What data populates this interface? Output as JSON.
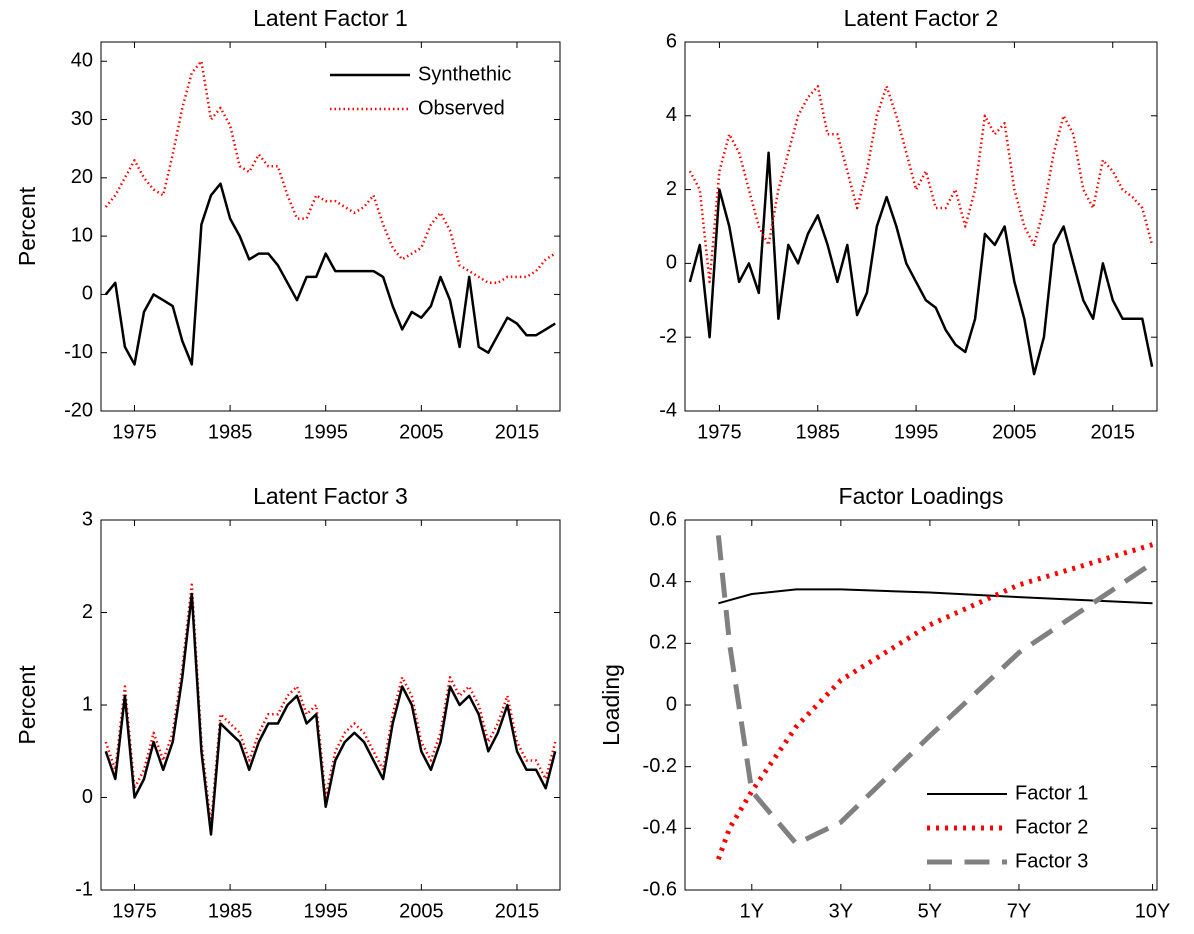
{
  "chart_data": [
    {
      "type": "line",
      "title": "Latent Factor 1",
      "y_label": "Percent",
      "x": [
        1972,
        1973,
        1974,
        1975,
        1976,
        1977,
        1978,
        1979,
        1980,
        1981,
        1982,
        1983,
        1984,
        1985,
        1986,
        1987,
        1988,
        1989,
        1990,
        1991,
        1992,
        1993,
        1994,
        1995,
        1996,
        1997,
        1998,
        1999,
        2000,
        2001,
        2002,
        2003,
        2004,
        2005,
        2006,
        2007,
        2008,
        2009,
        2010,
        2011,
        2012,
        2013,
        2014,
        2015,
        2016,
        2017,
        2018,
        2019
      ],
      "xlim": [
        1971.5,
        2019.5
      ],
      "xticks": [
        1975,
        1985,
        1995,
        2005,
        2015
      ],
      "ylim": [
        -20,
        43.3
      ],
      "yticks": [
        -20,
        -10,
        0,
        10,
        20,
        30,
        40
      ],
      "legend": "upper right",
      "series": [
        {
          "name": "Synthethic",
          "color": "#000000",
          "linestyle": "solid",
          "linewidth": 2.5,
          "values": [
            0,
            2,
            -9,
            -12,
            -3,
            0,
            -1,
            -2,
            -8,
            -12,
            12,
            17,
            19,
            13,
            10,
            6,
            7,
            7,
            5,
            2,
            -1,
            3,
            3,
            7,
            4,
            4,
            4,
            4,
            4,
            3,
            -2,
            -6,
            -3,
            -4,
            -2,
            3,
            -1,
            -9,
            3,
            -9,
            -10,
            -7,
            -4,
            -5,
            -7,
            -7,
            -6,
            -5
          ]
        },
        {
          "name": "Observed",
          "color": "#ff0000",
          "linestyle": "dotted",
          "linewidth": 2.5,
          "values": [
            15,
            17,
            20,
            23,
            20,
            18,
            17,
            24,
            32,
            38,
            40,
            30,
            32,
            29,
            22,
            21,
            24,
            22,
            22,
            17,
            13,
            13,
            17,
            16,
            16,
            15,
            14,
            15,
            17,
            12,
            8,
            6,
            7,
            8,
            12,
            14,
            11,
            5,
            4,
            3,
            2,
            2,
            3,
            3,
            3,
            4,
            6,
            7
          ]
        }
      ]
    },
    {
      "type": "line",
      "title": "Latent Factor 2",
      "x": [
        1972,
        1973,
        1974,
        1975,
        1976,
        1977,
        1978,
        1979,
        1980,
        1981,
        1982,
        1983,
        1984,
        1985,
        1986,
        1987,
        1988,
        1989,
        1990,
        1991,
        1992,
        1993,
        1994,
        1995,
        1996,
        1997,
        1998,
        1999,
        2000,
        2001,
        2002,
        2003,
        2004,
        2005,
        2006,
        2007,
        2008,
        2009,
        2010,
        2011,
        2012,
        2013,
        2014,
        2015,
        2016,
        2017,
        2018,
        2019
      ],
      "xlim": [
        1971.5,
        2019.5
      ],
      "xticks": [
        1975,
        1985,
        1995,
        2005,
        2015
      ],
      "ylim": [
        -4,
        6
      ],
      "yticks": [
        -4,
        -2,
        0,
        2,
        4,
        6
      ],
      "series": [
        {
          "color": "#000000",
          "linestyle": "solid",
          "linewidth": 2.5,
          "values": [
            -0.5,
            0.5,
            -2,
            2,
            1,
            -0.5,
            0,
            -0.8,
            3,
            -1.5,
            0.5,
            0,
            0.8,
            1.3,
            0.5,
            -0.5,
            0.5,
            -1.4,
            -0.8,
            1,
            1.8,
            1,
            0,
            -0.5,
            -1,
            -1.2,
            -1.8,
            -2.2,
            -2.4,
            -1.5,
            0.8,
            0.5,
            1,
            -0.5,
            -1.5,
            -3,
            -2,
            0.5,
            1,
            0,
            -1,
            -1.5,
            0,
            -1,
            -1.5,
            -1.5,
            -1.5,
            -2.8
          ]
        },
        {
          "color": "#ff0000",
          "linestyle": "dotted",
          "linewidth": 2.5,
          "values": [
            2.5,
            2,
            -0.5,
            2.5,
            3.5,
            3,
            2,
            1,
            0.5,
            2,
            3,
            4,
            4.5,
            4.8,
            3.5,
            3.5,
            2.5,
            1.5,
            2.5,
            4,
            4.8,
            4,
            3,
            2,
            2.5,
            1.5,
            1.5,
            2,
            1,
            2,
            4,
            3.5,
            3.8,
            2,
            1,
            0.5,
            1.5,
            3,
            4,
            3.5,
            2,
            1.5,
            2.8,
            2.5,
            2,
            1.8,
            1.5,
            0.5
          ]
        }
      ]
    },
    {
      "type": "line",
      "title": "Latent Factor 3",
      "y_label": "Percent",
      "x": [
        1972,
        1973,
        1974,
        1975,
        1976,
        1977,
        1978,
        1979,
        1980,
        1981,
        1982,
        1983,
        1984,
        1985,
        1986,
        1987,
        1988,
        1989,
        1990,
        1991,
        1992,
        1993,
        1994,
        1995,
        1996,
        1997,
        1998,
        1999,
        2000,
        2001,
        2002,
        2003,
        2004,
        2005,
        2006,
        2007,
        2008,
        2009,
        2010,
        2011,
        2012,
        2013,
        2014,
        2015,
        2016,
        2017,
        2018,
        2019
      ],
      "xlim": [
        1971.5,
        2019.5
      ],
      "xticks": [
        1975,
        1985,
        1995,
        2005,
        2015
      ],
      "ylim": [
        -1,
        3
      ],
      "yticks": [
        -1,
        0,
        1,
        2,
        3
      ],
      "series": [
        {
          "color": "#ff0000",
          "linestyle": "dotted",
          "linewidth": 2.5,
          "values": [
            0.6,
            0.3,
            1.2,
            0.1,
            0.3,
            0.7,
            0.4,
            0.7,
            1.4,
            2.3,
            0.6,
            -0.3,
            0.9,
            0.8,
            0.7,
            0.4,
            0.7,
            0.9,
            0.9,
            1.1,
            1.2,
            0.9,
            1,
            0,
            0.5,
            0.7,
            0.8,
            0.7,
            0.5,
            0.3,
            0.9,
            1.3,
            1.1,
            0.6,
            0.4,
            0.7,
            1.3,
            1.1,
            1.2,
            1,
            0.6,
            0.8,
            1.1,
            0.6,
            0.4,
            0.4,
            0.2,
            0.6
          ]
        },
        {
          "color": "#000000",
          "linestyle": "solid",
          "linewidth": 2.5,
          "values": [
            0.5,
            0.2,
            1.1,
            0,
            0.2,
            0.6,
            0.3,
            0.6,
            1.3,
            2.2,
            0.5,
            -0.4,
            0.8,
            0.7,
            0.6,
            0.3,
            0.6,
            0.8,
            0.8,
            1,
            1.1,
            0.8,
            0.9,
            -0.1,
            0.4,
            0.6,
            0.7,
            0.6,
            0.4,
            0.2,
            0.8,
            1.2,
            1,
            0.5,
            0.3,
            0.6,
            1.2,
            1,
            1.1,
            0.9,
            0.5,
            0.7,
            1,
            0.5,
            0.3,
            0.3,
            0.1,
            0.5
          ]
        }
      ]
    },
    {
      "type": "line",
      "title": "Factor Loadings",
      "y_label": "Loading",
      "x": [
        0.25,
        0.5,
        1,
        2,
        3,
        5,
        7,
        10
      ],
      "xlim": [
        -0.5,
        10.1
      ],
      "xticks": [
        {
          "value": 1,
          "label": "1Y"
        },
        {
          "value": 3,
          "label": "3Y"
        },
        {
          "value": 5,
          "label": "5Y"
        },
        {
          "value": 7,
          "label": "7Y"
        },
        {
          "value": 10,
          "label": "10Y"
        }
      ],
      "ylim": [
        -0.6,
        0.6
      ],
      "yticks": [
        -0.6,
        -0.4,
        -0.2,
        0,
        0.2,
        0.4,
        0.6
      ],
      "legend": "lower right",
      "series": [
        {
          "name": "Factor 1",
          "color": "#000000",
          "linestyle": "solid",
          "linewidth": 2,
          "values": [
            0.33,
            0.34,
            0.36,
            0.375,
            0.375,
            0.365,
            0.35,
            0.33
          ]
        },
        {
          "name": "Factor 2",
          "color": "#ff0000",
          "linestyle": "dotted",
          "linewidth": 5,
          "values": [
            -0.5,
            -0.4,
            -0.28,
            -0.07,
            0.08,
            0.26,
            0.39,
            0.52
          ]
        },
        {
          "name": "Factor 3",
          "color": "#808080",
          "linestyle": "dashed",
          "linewidth": 5,
          "values": [
            0.55,
            0.2,
            -0.28,
            -0.45,
            -0.38,
            -0.1,
            0.17,
            0.46
          ]
        }
      ]
    }
  ]
}
